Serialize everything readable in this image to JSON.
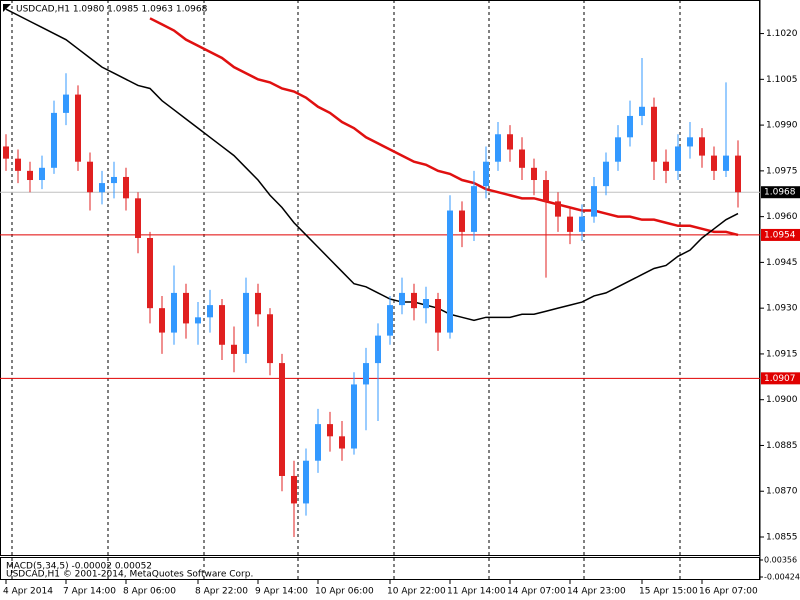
{
  "chart_data": {
    "type": "candlestick",
    "title": "USDCAD,H1  1.0980 1.0985 1.0963 1.0968",
    "categories": [
      "4 Apr 2014",
      null,
      null,
      null,
      null,
      "7 Apr 14:00",
      null,
      null,
      null,
      null,
      "8 Apr 06:00",
      null,
      null,
      null,
      null,
      null,
      "8 Apr 22:00",
      null,
      null,
      null,
      null,
      "9 Apr 14:00",
      null,
      null,
      null,
      null,
      "10 Apr 06:00",
      null,
      null,
      null,
      null,
      null,
      "10 Apr 22:00",
      null,
      null,
      null,
      null,
      "11 Apr 14:00",
      null,
      null,
      null,
      null,
      "14 Apr 07:00",
      null,
      null,
      null,
      null,
      "14 Apr 23:00",
      null,
      null,
      null,
      null,
      null,
      "15 Apr 15:00",
      null,
      null,
      null,
      null,
      "16 Apr 07:00",
      null,
      null,
      null
    ],
    "ohlc": [
      [
        1.0983,
        1.0987,
        1.0975,
        1.0979
      ],
      [
        1.0979,
        1.0982,
        1.0971,
        1.0975
      ],
      [
        1.0975,
        1.0978,
        1.0968,
        1.0972
      ],
      [
        1.0972,
        1.098,
        1.0969,
        1.0976
      ],
      [
        1.0976,
        1.0998,
        1.0974,
        1.0994
      ],
      [
        1.0994,
        1.1007,
        1.099,
        1.1
      ],
      [
        1.1,
        1.1003,
        1.0975,
        1.0978
      ],
      [
        1.0978,
        1.0981,
        1.0962,
        1.0968
      ],
      [
        1.0968,
        1.0975,
        1.0964,
        1.0971
      ],
      [
        1.0971,
        1.0978,
        1.0966,
        1.0973
      ],
      [
        1.0973,
        1.0976,
        1.0962,
        1.0966
      ],
      [
        1.0966,
        1.0968,
        1.0948,
        1.0953
      ],
      [
        1.0953,
        1.0955,
        1.0925,
        1.093
      ],
      [
        1.093,
        1.0934,
        1.0915,
        1.0922
      ],
      [
        1.0922,
        1.0944,
        1.0918,
        1.0935
      ],
      [
        1.0935,
        1.0938,
        1.092,
        1.0925
      ],
      [
        1.0925,
        1.0932,
        1.0918,
        1.0927
      ],
      [
        1.0927,
        1.0936,
        1.0922,
        1.0931
      ],
      [
        1.0931,
        1.0933,
        1.0913,
        1.0918
      ],
      [
        1.0918,
        1.0924,
        1.0909,
        1.0915
      ],
      [
        1.0915,
        1.094,
        1.0912,
        1.0935
      ],
      [
        1.0935,
        1.0938,
        1.0924,
        1.0928
      ],
      [
        1.0928,
        1.093,
        1.0908,
        1.0912
      ],
      [
        1.0912,
        1.0915,
        1.087,
        1.0875
      ],
      [
        1.0875,
        1.088,
        1.0855,
        1.0866
      ],
      [
        1.0866,
        1.0884,
        1.0862,
        1.088
      ],
      [
        1.088,
        1.0897,
        1.0876,
        1.0892
      ],
      [
        1.0892,
        1.0896,
        1.0883,
        1.0888
      ],
      [
        1.0888,
        1.0893,
        1.088,
        1.0884
      ],
      [
        1.0884,
        1.0909,
        1.0882,
        1.0905
      ],
      [
        1.0905,
        1.0917,
        1.089,
        1.0912
      ],
      [
        1.0912,
        1.0925,
        1.0893,
        1.0921
      ],
      [
        1.0921,
        1.0934,
        1.0918,
        1.0931
      ],
      [
        1.0931,
        1.094,
        1.0928,
        1.0935
      ],
      [
        1.0935,
        1.0938,
        1.0926,
        1.093
      ],
      [
        1.093,
        1.0937,
        1.0925,
        1.0933
      ],
      [
        1.0933,
        1.0935,
        1.0916,
        1.0922
      ],
      [
        1.0922,
        1.0967,
        1.092,
        1.0962
      ],
      [
        1.0962,
        1.0965,
        1.095,
        1.0955
      ],
      [
        1.0955,
        1.0975,
        1.0952,
        1.097
      ],
      [
        1.097,
        1.0983,
        1.0966,
        1.0978
      ],
      [
        1.0978,
        1.0991,
        1.0975,
        1.0987
      ],
      [
        1.0987,
        1.099,
        1.0978,
        1.0982
      ],
      [
        1.0982,
        1.0986,
        1.0972,
        1.0976
      ],
      [
        1.0976,
        1.0979,
        1.0967,
        1.0972
      ],
      [
        1.0972,
        1.0975,
        1.094,
        1.0965
      ],
      [
        1.0965,
        1.0968,
        1.0955,
        1.096
      ],
      [
        1.096,
        1.0963,
        1.0951,
        1.0955
      ],
      [
        1.0955,
        1.0964,
        1.0952,
        1.096
      ],
      [
        1.096,
        1.0973,
        1.0958,
        1.097
      ],
      [
        1.097,
        1.0981,
        1.0967,
        1.0978
      ],
      [
        1.0978,
        1.099,
        1.0975,
        1.0986
      ],
      [
        1.0986,
        1.0998,
        1.0983,
        1.0993
      ],
      [
        1.0993,
        1.1012,
        1.099,
        1.0996
      ],
      [
        1.0996,
        1.0999,
        1.0972,
        1.0978
      ],
      [
        1.0978,
        1.0982,
        1.0971,
        1.0975
      ],
      [
        1.0975,
        1.0987,
        1.0972,
        1.0983
      ],
      [
        1.0983,
        1.0991,
        1.0979,
        1.0986
      ],
      [
        1.0986,
        1.0989,
        1.0976,
        1.098
      ],
      [
        1.098,
        1.0983,
        1.0972,
        1.0975
      ],
      [
        1.0975,
        1.1004,
        1.0973,
        1.098
      ],
      [
        1.098,
        1.0985,
        1.0963,
        1.0968
      ]
    ],
    "up_color": "#3399ff",
    "down_color": "#e02020",
    "moving_averages": [
      {
        "color": "#e01010",
        "values": [
          null,
          null,
          null,
          null,
          null,
          null,
          null,
          null,
          null,
          null,
          null,
          null,
          1.1025,
          1.1023,
          1.1021,
          1.1018,
          1.1016,
          1.1014,
          1.1012,
          1.1009,
          1.1007,
          1.1005,
          1.1004,
          1.1002,
          1.1001,
          1.0999,
          1.0996,
          1.0994,
          1.0991,
          1.0989,
          1.0986,
          1.0984,
          1.0982,
          1.098,
          1.0978,
          1.0977,
          1.0975,
          1.0974,
          1.0972,
          1.0971,
          1.0969,
          1.0968,
          1.0967,
          1.0966,
          1.0966,
          1.0965,
          1.0964,
          1.0963,
          1.0962,
          1.0962,
          1.0961,
          1.096,
          1.096,
          1.0959,
          1.0959,
          1.0958,
          1.0957,
          1.0957,
          1.0956,
          1.0955,
          1.0955,
          1.0954
        ]
      },
      {
        "color": "#000000",
        "values": [
          1.1028,
          1.1026,
          1.1024,
          1.1022,
          1.102,
          1.1018,
          1.1015,
          1.1012,
          1.1009,
          1.1007,
          1.1005,
          1.1003,
          1.1002,
          1.0998,
          1.0995,
          1.0992,
          1.0989,
          1.0986,
          1.0983,
          1.098,
          1.0976,
          1.0972,
          1.0967,
          1.0963,
          1.0958,
          1.0954,
          1.095,
          1.0946,
          1.0942,
          1.0938,
          1.0937,
          1.0935,
          1.0933,
          1.0932,
          1.0932,
          1.0931,
          1.093,
          1.0928,
          1.0927,
          1.0926,
          1.0927,
          1.0927,
          1.0927,
          1.0928,
          1.0928,
          1.0929,
          1.093,
          1.0931,
          1.0932,
          1.0934,
          1.0935,
          1.0937,
          1.0939,
          1.0941,
          1.0943,
          1.0944,
          1.0947,
          1.0949,
          1.0953,
          1.0956,
          1.0959,
          1.0961
        ]
      }
    ],
    "hlines": [
      {
        "value": 1.0968,
        "label": "1.0968",
        "color": "#c0c0c0",
        "box_color": "#000000"
      },
      {
        "value": 1.0954,
        "label": "1.0954",
        "color": "#e00000",
        "box_color": "#e00000"
      },
      {
        "value": 1.0907,
        "label": "1.0907",
        "color": "#e00000",
        "box_color": "#e00000"
      }
    ],
    "ylim": [
      1.08491,
      1.1031
    ],
    "yticks": [
      {
        "value": 1.102,
        "label": "1.1020"
      },
      {
        "value": 1.1005,
        "label": "1.1005"
      },
      {
        "value": 1.099,
        "label": "1.0990"
      },
      {
        "value": 1.0975,
        "label": "1.0975"
      },
      {
        "value": 1.096,
        "label": "1.0960"
      },
      {
        "value": 1.0945,
        "label": "1.0945"
      },
      {
        "value": 1.093,
        "label": "1.0930"
      },
      {
        "value": 1.0915,
        "label": "1.0915"
      },
      {
        "value": 1.09,
        "label": "1.0900"
      },
      {
        "value": 1.0885,
        "label": "1.0885"
      },
      {
        "value": 1.087,
        "label": "1.0870"
      },
      {
        "value": 1.0855,
        "label": "1.0855"
      }
    ],
    "macd": {
      "label": "MACD(5,34,5) -0.00002 0.00052",
      "copyright": "USDCAD,H1 © 2001-2014, MetaQuotes Software Corp.",
      "ylim": [
        -0.00424,
        0.00356
      ],
      "yticks": [
        {
          "value": 0.00356,
          "label": "0.00356"
        },
        {
          "value": -0.00424,
          "label": "-0.00424"
        }
      ]
    }
  }
}
